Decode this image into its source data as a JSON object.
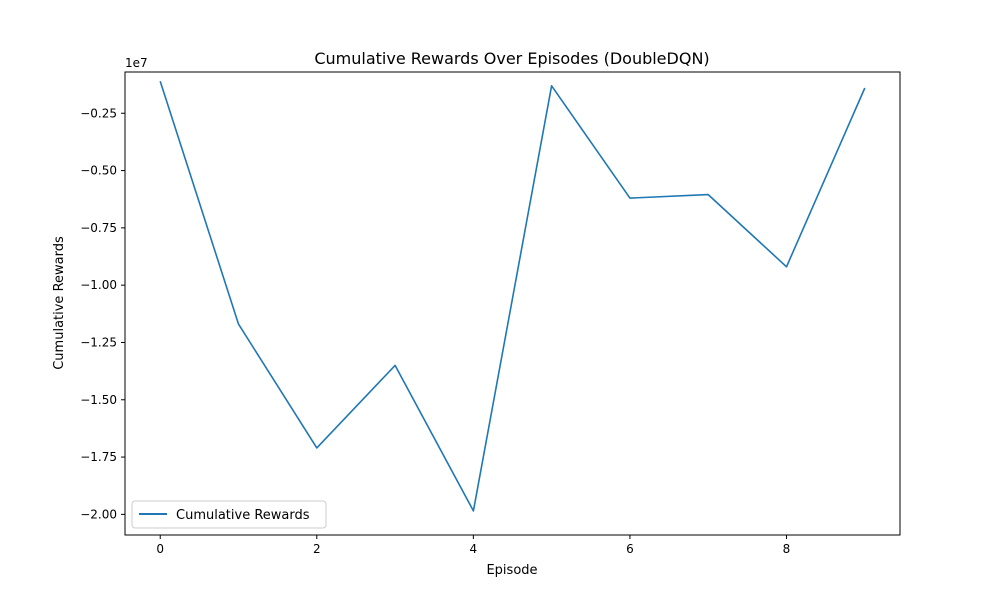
{
  "chart_data": {
    "type": "line",
    "title": "Cumulative Rewards Over Episodes (DoubleDQN)",
    "xlabel": "Episode",
    "ylabel": "Cumulative Rewards",
    "offset_label": "1e7",
    "x_ticks": [
      0,
      2,
      4,
      6,
      8
    ],
    "x_tick_labels": [
      "0",
      "2",
      "4",
      "6",
      "8"
    ],
    "y_ticks": [
      -2.0,
      -1.75,
      -1.5,
      -1.25,
      -1.0,
      -0.75,
      -0.5,
      -0.25
    ],
    "y_tick_labels": [
      "−2.00",
      "−1.75",
      "−1.50",
      "−1.25",
      "−1.00",
      "−0.75",
      "−0.50",
      "−0.25"
    ],
    "xlim": [
      -0.45,
      9.45
    ],
    "ylim": [
      -2.09,
      -0.07
    ],
    "grid": false,
    "legend_position": "lower-left",
    "series": [
      {
        "name": "Cumulative Rewards",
        "color": "#1f77b4",
        "x": [
          0,
          1,
          2,
          3,
          4,
          5,
          6,
          7,
          8,
          9
        ],
        "y": [
          -0.11,
          -1.17,
          -1.71,
          -1.35,
          -1.985,
          -0.13,
          -0.62,
          -0.605,
          -0.92,
          -0.14
        ]
      }
    ]
  }
}
